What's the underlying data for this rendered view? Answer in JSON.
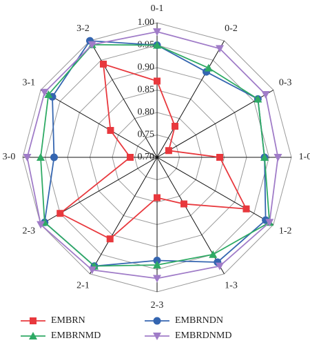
{
  "chart_data": {
    "type": "radar",
    "categories": [
      "0-1",
      "0-2",
      "0-3",
      "1-0",
      "1-2",
      "1-3",
      "2-3",
      "2-1",
      "2-3",
      "3-0",
      "3-1",
      "3-2"
    ],
    "ylim": [
      0.7,
      1.0
    ],
    "yticks": [
      {
        "value": 0.7,
        "label": "0.70"
      },
      {
        "value": 0.75,
        "label": "0.75"
      },
      {
        "value": 0.8,
        "label": "0.80"
      },
      {
        "value": 0.85,
        "label": "0.85"
      },
      {
        "value": 0.9,
        "label": "0.90"
      },
      {
        "value": 0.95,
        "label": "0.95"
      },
      {
        "value": 1.0,
        "label": "1.00"
      }
    ],
    "grid": true,
    "series": [
      {
        "name": "EMBRN",
        "color": "#e8383d",
        "marker": "square",
        "values": [
          0.87,
          0.78,
          0.73,
          0.84,
          0.93,
          0.82,
          0.79,
          0.91,
          0.95,
          0.76,
          0.82,
          0.94
        ]
      },
      {
        "name": "EMBRNDN",
        "color": "#3465b0",
        "marker": "circle",
        "values": [
          0.95,
          0.92,
          0.96,
          0.94,
          0.98,
          0.97,
          0.93,
          0.98,
          0.99,
          0.93,
          0.97,
          1.0
        ]
      },
      {
        "name": "EMBRNMD",
        "color": "#2eaa64",
        "marker": "triangle-up",
        "values": [
          0.95,
          0.93,
          0.96,
          0.94,
          0.99,
          0.95,
          0.94,
          0.98,
          0.99,
          0.96,
          0.98,
          0.99
        ]
      },
      {
        "name": "EMBRDNMD",
        "color": "#a07cc8",
        "marker": "triangle-down",
        "values": [
          0.98,
          0.98,
          0.98,
          0.97,
          0.99,
          0.98,
          0.97,
          0.99,
          1.0,
          0.99,
          0.99,
          0.99
        ]
      }
    ]
  }
}
